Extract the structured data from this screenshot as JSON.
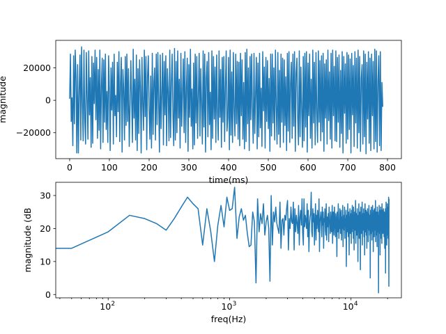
{
  "chart_data": [
    {
      "type": "line",
      "xlabel": "time(ms)",
      "ylabel": "magnitude",
      "xlim": [
        -35,
        835
      ],
      "ylim": [
        -36000,
        37000
      ],
      "xticks": [
        0,
        100,
        200,
        300,
        400,
        500,
        600,
        700,
        800
      ],
      "xtick_labels": [
        "0",
        "100",
        "200",
        "300",
        "400",
        "500",
        "600",
        "700",
        "800"
      ],
      "yticks": [
        -20000,
        0,
        20000
      ],
      "ytick_labels": [
        "−20000",
        "0",
        "20000"
      ],
      "color": "#1f77b4",
      "x_start": 0,
      "x_step": 2,
      "y": [
        1000,
        28500,
        -13000,
        1500,
        -28000,
        27500,
        -14500,
        31000,
        14000,
        -32500,
        22000,
        -32500,
        6500,
        28000,
        -24500,
        33000,
        -2000,
        -25000,
        31000,
        -11000,
        -27000,
        29500,
        2000,
        -24000,
        30500,
        -9000,
        14000,
        -29000,
        27000,
        -26500,
        23000,
        -2000,
        31000,
        -12000,
        26500,
        -23500,
        19000,
        -18500,
        31000,
        -30000,
        9000,
        26000,
        -26000,
        25000,
        -13500,
        28500,
        -18000,
        5500,
        -26000,
        27500,
        5500,
        -31000,
        20000,
        -6000,
        23500,
        -27000,
        28500,
        -9500,
        3000,
        -22500,
        23500,
        -7000,
        30000,
        -25500,
        11000,
        26500,
        -32000,
        19000,
        7000,
        -24500,
        27000,
        -15500,
        28500,
        -13000,
        19500,
        -28500,
        -3500,
        24500,
        1000,
        -26000,
        31500,
        -11000,
        13000,
        -24500,
        28000,
        -31000,
        19500,
        -20500,
        25000,
        8000,
        -32500,
        26500,
        -2500,
        -18500,
        31000,
        -10000,
        27000,
        -30500,
        14500,
        27500,
        -6000,
        -24000,
        15000,
        -29500,
        29000,
        -21000,
        11500,
        20000,
        -24500,
        28500,
        -15000,
        29500,
        -1000,
        -32000,
        28000,
        -17500,
        3500,
        29000,
        -27500,
        24000,
        -9000,
        27500,
        -28000,
        19500,
        5500,
        -25000,
        31000,
        -23000,
        10500,
        28500,
        -10000,
        -28000,
        32000,
        -24500,
        24000,
        -20000,
        30500,
        -11000,
        13000,
        -29500,
        29000,
        -16000,
        4000,
        25500,
        -20000,
        30000,
        -26000,
        8000,
        26000,
        -31500,
        22000,
        -10500,
        31500,
        -16000,
        7000,
        -30000,
        23000,
        -27500,
        28500,
        -14000,
        27000,
        -23500,
        3000,
        29000,
        -22000,
        19500,
        -2000,
        -27000,
        30500,
        -16500,
        28500,
        -32000,
        14000,
        24000,
        -22500,
        29500,
        -15000,
        5000,
        -30500,
        30500,
        -23500,
        27000,
        -11500,
        20500,
        -26000,
        28000,
        -7000,
        -24500,
        30500,
        -10500,
        19000,
        -29000,
        26500,
        -13500,
        27000,
        -25500,
        8500,
        30500,
        -19000,
        -11000,
        26500,
        -30500,
        31000,
        -21500,
        17500,
        -26000,
        29500,
        -5500,
        -22000,
        28500,
        -14500,
        24000,
        -24000,
        23500,
        -28000,
        29000,
        -9500,
        25000,
        -24000,
        11000,
        -30000,
        29500,
        -25500,
        31500,
        -14500,
        20000,
        -31000,
        27000,
        -12000,
        28500,
        -5500,
        -26500,
        29000,
        -20500,
        3500,
        26500,
        -30000,
        23000,
        -22500,
        29000,
        -17000,
        7500,
        -28500,
        30000,
        -6500,
        20500,
        -29500,
        26500,
        -13000,
        24500,
        -17500,
        13500,
        -31500,
        28500,
        -22000,
        28500,
        -14000,
        20000,
        -24500,
        31000,
        -4000,
        -27000,
        29500,
        -21000,
        18500,
        -29000,
        28500,
        -13500,
        26000,
        -26000,
        25000,
        -15500,
        14500,
        -31000,
        29000,
        -19000,
        30000,
        -26000,
        10500,
        23500,
        -23500,
        28500,
        -16000,
        30000,
        -31500,
        16500,
        26000,
        -10500,
        -27500,
        30500,
        -22500,
        20500,
        -5000,
        -29000,
        27000,
        -25000,
        29000,
        -16500,
        30000,
        -32000,
        23000,
        -9500,
        28500,
        -23500,
        13000,
        -29500,
        31000,
        -14000,
        23500,
        -27500,
        29500,
        -7500,
        -26000,
        30500,
        -13500,
        24500,
        -25000,
        27500,
        -19500,
        29000,
        -31500,
        22500,
        -11000,
        25000,
        -27000,
        31000,
        -12500,
        17500,
        -24000,
        29000,
        -29500,
        31000,
        -9500,
        21000,
        -25000,
        30500,
        -25500,
        26500,
        -13500,
        28000,
        -29000,
        18500,
        -20500,
        30000,
        -32500,
        27000,
        -8000,
        22500,
        -26500,
        29500,
        -24000,
        28000,
        -18000,
        25500,
        -32500,
        29000,
        -9000,
        21500,
        -28500,
        30000,
        -14000,
        26000,
        -29500,
        31000,
        -20000,
        27000,
        -31500,
        13500,
        22000,
        -27000,
        30500,
        -22500,
        28500,
        -33000,
        23500,
        -11500,
        30000,
        -26500,
        26000,
        -31000,
        28500,
        -9500,
        24000,
        -30000,
        31500,
        -25500,
        30500,
        -32000,
        12000,
        27500,
        -28000,
        30000,
        -31000,
        11000,
        -4000
      ]
    },
    {
      "type": "line",
      "xlabel": "freq(Hz)",
      "ylabel": "magnitude (dB",
      "x_scale": "log",
      "xlim": [
        37,
        26000
      ],
      "ylim": [
        -1,
        34
      ],
      "xticks": [
        100,
        1000,
        10000
      ],
      "xtick_labels": [
        "10",
        "10",
        "10"
      ],
      "xtick_exponents": [
        "2",
        "3",
        "4"
      ],
      "yticks": [
        0,
        10,
        20,
        30
      ],
      "ytick_labels": [
        "0",
        "10",
        "20",
        "30"
      ],
      "color": "#1f77b4",
      "x_start": 50,
      "x_step": 50,
      "first_point": [
        37,
        14
      ],
      "y": [
        14,
        19,
        24,
        23,
        21.5,
        19.5,
        23,
        26.5,
        29.5,
        27.5,
        26,
        15,
        26,
        19,
        10,
        21,
        27,
        20.5,
        29.5,
        25.5,
        26,
        32.5,
        17,
        23.5,
        26,
        22.5,
        24,
        18.5,
        14.5,
        15,
        25,
        22,
        3.5,
        29,
        19,
        24.5,
        21.5,
        27.5,
        18,
        22,
        24,
        20,
        4,
        30,
        15,
        25,
        22,
        26.5,
        21.5,
        20,
        18.5,
        28,
        14,
        22.5,
        23,
        18,
        24,
        22.5,
        26,
        28.5,
        13.5,
        23,
        20,
        26.5,
        22,
        21.5,
        28,
        13.5,
        26,
        19,
        24,
        21.5,
        18.5,
        27,
        15,
        23.5,
        25.5,
        21,
        29,
        18.5,
        15,
        29,
        20.5,
        24,
        22.5,
        20,
        27.5,
        17.5,
        25.5,
        13,
        21,
        23.5,
        24.5,
        31,
        19,
        17.5,
        26,
        22,
        24.5,
        15,
        22,
        27.5,
        16.5,
        24,
        20,
        25.5,
        22.5,
        19,
        29,
        13,
        22,
        23.5,
        25,
        20.5,
        17.5,
        26.5,
        21,
        25,
        14,
        23,
        22,
        26,
        19.5,
        18,
        27.5,
        16.5,
        23.5,
        20.5,
        21,
        24.5,
        16,
        26.5,
        22,
        22.5,
        18.5,
        25,
        21.5,
        19,
        23,
        27,
        15.5,
        22,
        25,
        20.5,
        18,
        26.5,
        22.5,
        21,
        17.5,
        24.5,
        23,
        20,
        11.5,
        25,
        22,
        19,
        27.5,
        23.5,
        17,
        22.5,
        20,
        26,
        21.5,
        18.5,
        24,
        25.5,
        16.5,
        22,
        23.5,
        20,
        27,
        14.5,
        22.5,
        19.5,
        24,
        21,
        26.5,
        17,
        23,
        20.5,
        22,
        25.5,
        8.5,
        24,
        21.5,
        19,
        22.5,
        27.5,
        20,
        17.5,
        25,
        22,
        12,
        23.5,
        21,
        26,
        18.5,
        24.5,
        20.5,
        22.5,
        15.5,
        25.5,
        21,
        19,
        27,
        22,
        20,
        24,
        17,
        26.5,
        22.5,
        13.5,
        23,
        21.5,
        25,
        19.5,
        22,
        28.5,
        15.5,
        20.5,
        23.5,
        24.5,
        18,
        22,
        26,
        20,
        22.5,
        10,
        21.5,
        24,
        19,
        27.5,
        22.5,
        17,
        23,
        25,
        20.5,
        21.5,
        7.5,
        23.5,
        26.5,
        20,
        18.5,
        24,
        22,
        21,
        28,
        15,
        22.5,
        24.5,
        19.5,
        23,
        20,
        26,
        21.5,
        17.5,
        24.5,
        22,
        12,
        23,
        27.5,
        20.5,
        19,
        24,
        22.5,
        25.5,
        18,
        21.5,
        23.5,
        14,
        25,
        22,
        20,
        26,
        21,
        23,
        16,
        24.5,
        22,
        19.5,
        27,
        22.5,
        20.5,
        23.5,
        18,
        24,
        21.5,
        5,
        23.5,
        25.5,
        20,
        22,
        18.5,
        26.5,
        22,
        23,
        16.5,
        24.5,
        21,
        20,
        27,
        22.5,
        19,
        24,
        13,
        23.5,
        21.5,
        25.5,
        20.5,
        22,
        17.5,
        26,
        23,
        21,
        19.5,
        24.5,
        22.5,
        28.5,
        16,
        21.5,
        23,
        20.5,
        25,
        22,
        18,
        24,
        21.5,
        14.5,
        26.5,
        23.5,
        20,
        22,
        25,
        19,
        23,
        21.5,
        0.5,
        22.5,
        24,
        20.5,
        27,
        21,
        23.5,
        18.5,
        25.5,
        22,
        12,
        24.5,
        21.5,
        19.5,
        26.5,
        22.5,
        20.5,
        23.5,
        17,
        25.5,
        21,
        23,
        15.5,
        27.5,
        22,
        20,
        24.5,
        21.5,
        25.5,
        18.5,
        23,
        22,
        19,
        26,
        21.5,
        24,
        20.5,
        17.5,
        23.5,
        25,
        21,
        22.5,
        14,
        24.5,
        19,
        23,
        21.5,
        26,
        6.5,
        20.5,
        24,
        22.5,
        28,
        19.5,
        23,
        21,
        25.5,
        15,
        22,
        24,
        20.5,
        27.5,
        22.5,
        18,
        25,
        21,
        23,
        17,
        26.5,
        22,
        19.5,
        29.5,
        15,
        2.5,
        29
      ]
    }
  ]
}
